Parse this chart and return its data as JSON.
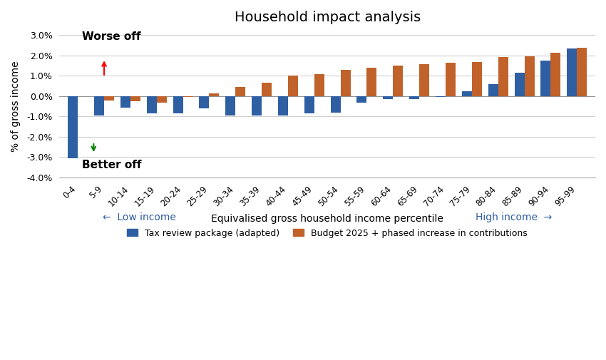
{
  "title": "Household impact analysis",
  "xlabel": "Equivalised gross household income percentile",
  "ylabel": "% of gross income",
  "categories": [
    "0-4",
    "5-9",
    "10-14",
    "15-19",
    "20-24",
    "25-29",
    "30-34",
    "35-39",
    "40-44",
    "45-49",
    "50-54",
    "55-59",
    "60-64",
    "65-69",
    "70-74",
    "75-79",
    "80-84",
    "85-89",
    "90-94",
    "95-99"
  ],
  "blue_values": [
    -3.05,
    -0.95,
    -0.55,
    -0.85,
    -0.85,
    -0.6,
    -0.95,
    -0.95,
    -0.95,
    -0.85,
    -0.8,
    -0.3,
    -0.15,
    -0.15,
    -0.05,
    0.25,
    0.6,
    1.15,
    1.75,
    2.35
  ],
  "orange_values": [
    null,
    -0.2,
    -0.25,
    -0.3,
    -0.05,
    0.15,
    0.45,
    0.68,
    1.0,
    1.1,
    1.3,
    1.4,
    1.5,
    1.58,
    1.65,
    1.7,
    1.92,
    1.95,
    2.15,
    2.4
  ],
  "blue_color": "#2E5FA3",
  "orange_color": "#C0622A",
  "ylim": [
    -4.0,
    3.0
  ],
  "yticks": [
    -4.0,
    -3.0,
    -2.0,
    -1.0,
    0.0,
    1.0,
    2.0,
    3.0
  ],
  "legend_blue": "Tax review package (adapted)",
  "legend_orange": "Budget 2025 + phased increase in contributions",
  "annotation_worse": "Worse off",
  "annotation_better": "Better off",
  "low_income_label": "←  Low income",
  "high_income_label": "High income  →",
  "background_color": "#ffffff"
}
